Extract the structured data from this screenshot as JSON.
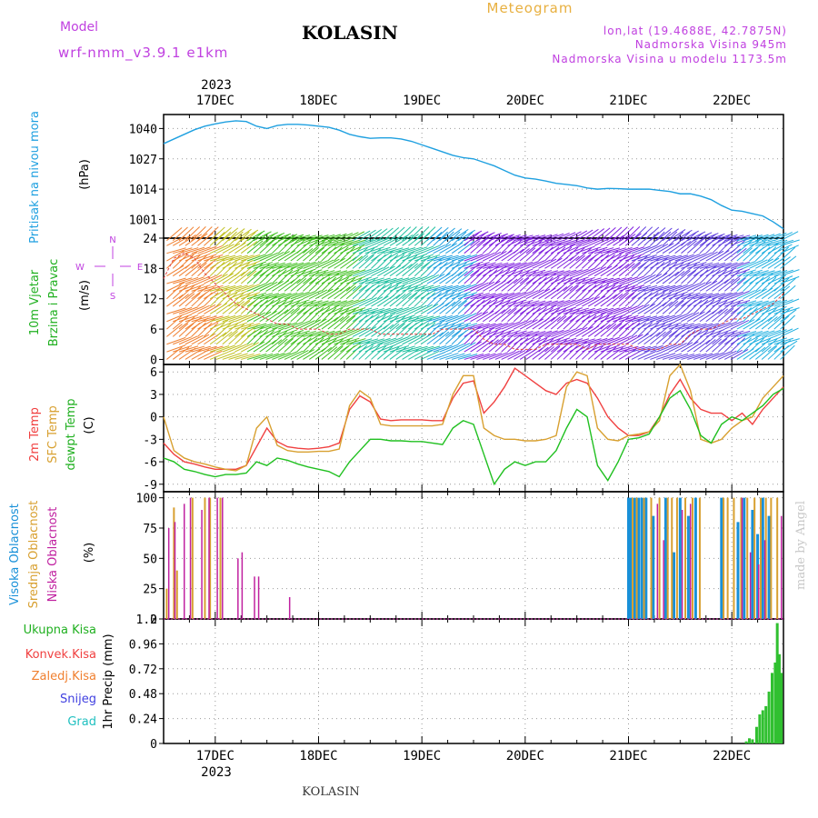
{
  "header": {
    "model_label": "Model",
    "model_name": "wrf-nmm_v3.9.1  e1km",
    "title": "KOLASIN",
    "meteogram": "Meteogram",
    "lonlat": "lon,lat (19.4688E, 42.7875N)",
    "elevation": "Nadmorska Visina 945m",
    "model_elevation": "Nadmorska Visina u modelu 1173.5m"
  },
  "time_axis": {
    "year": "2023",
    "day_labels": [
      "17DEC",
      "18DEC",
      "19DEC",
      "20DEC",
      "21DEC",
      "22DEC"
    ],
    "range_days": [
      16.5,
      22.5
    ]
  },
  "footer": {
    "station": "KOLASIN"
  },
  "watermark": "made by Angel",
  "colors": {
    "pressure": "#1fa0e0",
    "temp2m": "#f04040",
    "sfc": "#d8a030",
    "dewpt": "#20c020",
    "cloud_high": "#1890d8",
    "cloud_mid": "#d8a030",
    "cloud_low": "#c020a0",
    "precip": "#30c030",
    "magenta_label": "#c040e0"
  },
  "panels": {
    "pressure": {
      "label": "Pritisak na nivou mora",
      "unit": "(hPa)",
      "ticks": [
        "1040",
        "1027",
        "1014",
        "1001"
      ],
      "tick_values": [
        1040,
        1027,
        1014,
        1001
      ],
      "ylim": [
        993,
        1046
      ]
    },
    "wind": {
      "label_line1": "10m Vjetar",
      "label_line2": "Brzina i Pravac",
      "unit": "(m/s)",
      "compass": [
        "N",
        "E",
        "S",
        "W"
      ],
      "ticks": [
        "24",
        "18",
        "12",
        "6",
        "0"
      ],
      "tick_values": [
        24,
        18,
        12,
        6,
        0
      ],
      "ylim": [
        -1,
        24
      ]
    },
    "temp": {
      "label_2m": "2m Temp",
      "label_sfc": "SFC Temp",
      "label_dew": "dewpt Temp",
      "unit": "(C)",
      "ticks": [
        "6",
        "3",
        "0",
        "-3",
        "-6",
        "-9"
      ],
      "tick_values": [
        6,
        3,
        0,
        -3,
        -6,
        -9
      ],
      "ylim": [
        -10,
        7
      ]
    },
    "cloud": {
      "label_high": "Visoka Oblacnost",
      "label_mid": "Srednja Oblacnost",
      "label_low": "Niska Oblacnost",
      "unit": "(%)",
      "ticks": [
        "100",
        "75",
        "50",
        "25",
        "0"
      ],
      "tick_values": [
        100,
        75,
        50,
        25,
        0
      ],
      "ylim": [
        0,
        105
      ]
    },
    "precip": {
      "legend": [
        "Ukupna Kisa",
        "Konvek.Kisa",
        "Zaledj.Kisa",
        "Snijeg",
        "Grad"
      ],
      "legend_colors": [
        "#20b020",
        "#f04040",
        "#f08030",
        "#4040e0",
        "#20c0c0"
      ],
      "unit": "1hr Precip (mm)",
      "ticks": [
        "1.2",
        "0.96",
        "0.72",
        "0.48",
        "0.24",
        "0"
      ],
      "tick_values": [
        1.2,
        0.96,
        0.72,
        0.48,
        0.24,
        0
      ],
      "ylim": [
        0,
        1.2
      ]
    }
  },
  "chart_data": [
    {
      "type": "line",
      "title": "Pritisak na nivou mora",
      "ylabel": "(hPa)",
      "x_days": [
        16.5,
        16.6,
        16.7,
        16.8,
        16.9,
        17.0,
        17.1,
        17.2,
        17.3,
        17.4,
        17.5,
        17.6,
        17.7,
        17.8,
        17.9,
        18.0,
        18.1,
        18.2,
        18.3,
        18.4,
        18.5,
        18.6,
        18.7,
        18.8,
        18.9,
        19.0,
        19.1,
        19.2,
        19.3,
        19.4,
        19.5,
        19.6,
        19.7,
        19.8,
        19.9,
        20.0,
        20.1,
        20.2,
        20.3,
        20.4,
        20.5,
        20.6,
        20.7,
        20.8,
        20.9,
        21.0,
        21.1,
        21.2,
        21.3,
        21.4,
        21.5,
        21.6,
        21.7,
        21.8,
        21.9,
        22.0,
        22.1,
        22.2,
        22.3,
        22.4,
        22.5
      ],
      "series": [
        {
          "name": "pressure",
          "values": [
            1033.5,
            1035.5,
            1037.5,
            1039.5,
            1041.0,
            1042.0,
            1042.8,
            1043.3,
            1043.0,
            1041.0,
            1040.0,
            1041.3,
            1041.8,
            1041.8,
            1041.5,
            1041.0,
            1040.5,
            1039.3,
            1037.5,
            1036.5,
            1035.8,
            1036.0,
            1036.0,
            1035.5,
            1034.5,
            1033.0,
            1031.5,
            1030.0,
            1028.5,
            1027.5,
            1027.0,
            1025.5,
            1024.0,
            1022.0,
            1020.0,
            1018.8,
            1018.3,
            1017.5,
            1016.5,
            1016.0,
            1015.5,
            1014.5,
            1014.0,
            1014.3,
            1014.2,
            1014.0,
            1014.0,
            1014.0,
            1013.5,
            1013.0,
            1012.0,
            1012.0,
            1011.0,
            1009.5,
            1007.0,
            1005.0,
            1004.5,
            1003.5,
            1002.5,
            1000.0,
            997.0
          ]
        }
      ]
    },
    {
      "type": "scatter",
      "title": "10m Vjetar Brzina i Pravac",
      "ylabel": "(m/s)",
      "x_days": [
        16.5,
        16.6,
        16.7,
        16.8,
        16.9,
        17.0,
        17.1,
        17.2,
        17.3,
        17.4,
        17.5,
        17.6,
        17.7,
        17.8,
        17.9,
        18.0,
        18.1,
        18.2,
        18.3,
        18.4,
        18.5,
        18.6,
        18.7,
        18.8,
        18.9,
        19.0,
        19.1,
        19.2,
        19.3,
        19.4,
        19.5,
        19.6,
        19.7,
        19.8,
        19.9,
        20.0,
        20.1,
        20.2,
        20.3,
        20.4,
        20.5,
        20.6,
        20.7,
        20.8,
        20.9,
        21.0,
        21.1,
        21.2,
        21.3,
        21.4,
        21.5,
        21.6,
        21.7,
        21.8,
        21.9,
        22.0,
        22.1,
        22.2,
        22.3,
        22.4,
        22.5
      ],
      "series": [
        {
          "name": "wind_speed",
          "values": [
            16,
            20,
            21,
            20,
            17,
            15,
            13,
            11,
            10,
            9,
            8,
            7,
            7,
            6,
            6,
            6,
            5,
            5,
            6,
            6,
            6,
            5,
            5,
            5,
            5,
            5,
            5,
            6,
            6,
            6,
            6,
            4,
            3,
            3,
            2,
            2,
            2,
            3,
            3,
            3,
            3,
            2,
            3,
            3,
            3,
            3,
            2,
            2,
            2,
            3,
            3,
            5,
            6,
            6,
            7,
            8,
            8,
            9,
            10,
            11,
            13
          ]
        }
      ]
    },
    {
      "type": "line",
      "title": "2m Temp / SFC Temp / dewpt Temp",
      "ylabel": "(C)",
      "x_days": [
        16.5,
        16.6,
        16.7,
        16.8,
        16.9,
        17.0,
        17.1,
        17.2,
        17.3,
        17.4,
        17.5,
        17.6,
        17.7,
        17.8,
        17.9,
        18.0,
        18.1,
        18.2,
        18.3,
        18.4,
        18.5,
        18.6,
        18.7,
        18.8,
        18.9,
        19.0,
        19.1,
        19.2,
        19.3,
        19.4,
        19.5,
        19.6,
        19.7,
        19.8,
        19.9,
        20.0,
        20.1,
        20.2,
        20.3,
        20.4,
        20.5,
        20.6,
        20.7,
        20.8,
        20.9,
        21.0,
        21.1,
        21.2,
        21.3,
        21.4,
        21.5,
        21.6,
        21.7,
        21.8,
        21.9,
        22.0,
        22.1,
        22.2,
        22.3,
        22.4,
        22.5
      ],
      "series": [
        {
          "name": "2m Temp",
          "values": [
            -3.5,
            -5.0,
            -6.0,
            -6.3,
            -6.7,
            -7.0,
            -7.0,
            -7.0,
            -6.5,
            -4.0,
            -1.5,
            -3.3,
            -4.0,
            -4.2,
            -4.3,
            -4.2,
            -4.0,
            -3.5,
            1.0,
            2.8,
            2.0,
            -0.3,
            -0.5,
            -0.4,
            -0.4,
            -0.4,
            -0.5,
            -0.5,
            2.5,
            4.5,
            4.8,
            0.5,
            2.0,
            4.0,
            6.5,
            5.5,
            4.5,
            3.5,
            3.0,
            4.5,
            5.0,
            4.5,
            2.5,
            0.0,
            -1.5,
            -2.5,
            -2.5,
            -2.0,
            0.0,
            3.0,
            5.0,
            2.5,
            1.0,
            0.5,
            0.5,
            -0.5,
            0.5,
            -1.0,
            1.0,
            2.5,
            4.0
          ]
        },
        {
          "name": "SFC Temp",
          "values": [
            0.0,
            -4.5,
            -5.5,
            -6.0,
            -6.3,
            -6.7,
            -7.0,
            -7.2,
            -6.5,
            -1.5,
            0.0,
            -3.8,
            -4.5,
            -4.7,
            -4.7,
            -4.6,
            -4.6,
            -4.3,
            1.5,
            3.5,
            2.5,
            -1.0,
            -1.2,
            -1.2,
            -1.2,
            -1.2,
            -1.2,
            -1.0,
            3.0,
            5.5,
            5.5,
            -1.5,
            -2.5,
            -3.0,
            -3.0,
            -3.2,
            -3.2,
            -3.0,
            -2.5,
            4.0,
            6.0,
            5.5,
            -1.5,
            -3.0,
            -3.2,
            -2.5,
            -2.3,
            -2.0,
            -0.5,
            5.5,
            7.0,
            3.5,
            -3.0,
            -3.5,
            -3.0,
            -1.5,
            -0.5,
            0.0,
            2.5,
            4.0,
            5.5
          ]
        },
        {
          "name": "dewpt Temp",
          "values": [
            -5.5,
            -6.0,
            -7.0,
            -7.3,
            -7.7,
            -8.0,
            -7.7,
            -7.7,
            -7.5,
            -6.0,
            -6.5,
            -5.5,
            -5.8,
            -6.3,
            -6.7,
            -7.0,
            -7.3,
            -8.0,
            -6.0,
            -4.5,
            -3.0,
            -3.0,
            -3.2,
            -3.2,
            -3.3,
            -3.3,
            -3.5,
            -3.7,
            -1.5,
            -0.5,
            -1.0,
            -5.0,
            -9.0,
            -7.0,
            -6.0,
            -6.5,
            -6.0,
            -6.0,
            -4.5,
            -1.5,
            1.0,
            0.0,
            -6.5,
            -8.5,
            -6.0,
            -3.0,
            -2.8,
            -2.3,
            0.0,
            2.5,
            3.5,
            1.0,
            -2.5,
            -3.5,
            -1.0,
            0.0,
            -0.5,
            0.5,
            1.5,
            3.0,
            3.8
          ]
        }
      ]
    },
    {
      "type": "bar",
      "title": "Visoka / Srednja / Niska Oblacnost",
      "ylabel": "(%)",
      "series": [
        {
          "name": "Visoka Oblacnost",
          "x_days": [
            21.0,
            21.02,
            21.06,
            21.1,
            21.13,
            21.17,
            21.24,
            21.36,
            21.44,
            21.5,
            21.58,
            21.65,
            21.9,
            22.06,
            22.12,
            22.2,
            22.25,
            22.3,
            22.36
          ],
          "values": [
            100,
            100,
            100,
            100,
            100,
            100,
            85,
            100,
            55,
            100,
            85,
            100,
            100,
            80,
            100,
            90,
            70,
            100,
            85
          ]
        },
        {
          "name": "Srednja Oblacnost",
          "x_days": [
            16.53,
            16.6,
            16.63,
            16.78,
            16.9,
            16.95,
            17.05,
            21.04,
            21.08,
            21.15,
            21.22,
            21.3,
            21.38,
            21.42,
            21.47,
            21.55,
            21.62,
            21.69,
            21.92,
            21.96,
            22.02,
            22.09,
            22.15,
            22.22,
            22.28,
            22.33,
            22.38,
            22.44
          ],
          "values": [
            25,
            92,
            40,
            100,
            100,
            100,
            100,
            100,
            100,
            100,
            100,
            100,
            100,
            100,
            100,
            100,
            100,
            100,
            100,
            100,
            100,
            100,
            100,
            100,
            100,
            100,
            100,
            100
          ]
        },
        {
          "name": "Niska Oblacnost",
          "x_days": [
            16.55,
            16.61,
            16.7,
            16.76,
            16.87,
            16.94,
            17.02,
            17.07,
            17.22,
            17.26,
            17.38,
            17.42,
            17.72,
            21.28,
            21.34,
            21.52,
            21.6,
            22.1,
            22.18,
            22.26,
            22.32,
            22.48
          ],
          "values": [
            75,
            80,
            95,
            100,
            90,
            100,
            100,
            100,
            50,
            55,
            35,
            35,
            18,
            95,
            65,
            90,
            95,
            100,
            55,
            45,
            65,
            85
          ]
        }
      ],
      "ylim": [
        0,
        100
      ]
    },
    {
      "type": "bar",
      "title": "1hr Precip",
      "ylabel": "(mm)",
      "series": [
        {
          "name": "Ukupna Kisa",
          "x_days": [
            22.14,
            22.17,
            22.2,
            22.24,
            22.27,
            22.3,
            22.33,
            22.36,
            22.39,
            22.42,
            22.44,
            22.46,
            22.48
          ],
          "values": [
            0.02,
            0.05,
            0.04,
            0.16,
            0.28,
            0.32,
            0.36,
            0.5,
            0.68,
            0.78,
            1.16,
            0.86,
            0.68
          ]
        }
      ],
      "ylim": [
        0,
        1.2
      ]
    }
  ]
}
